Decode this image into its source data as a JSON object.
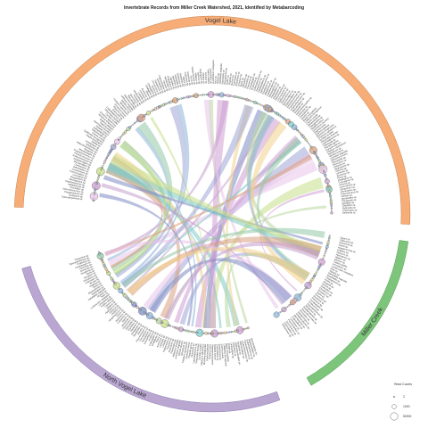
{
  "title": "Invertebrate Records from Miller Creek Watershed, 2021, Identified by Metabarcoding",
  "sectors": [
    {
      "name": "Vogel Lake",
      "color": "#f6ad77",
      "stroke": "#b8713a",
      "start": 272,
      "end": 453,
      "taxa_start": 276,
      "taxa_end": 450,
      "count": 170
    },
    {
      "name": "Miller Creek",
      "color": "#7cc57a",
      "stroke": "#3f8d3e",
      "start": 98,
      "end": 150,
      "taxa_start": 100,
      "taxa_end": 148,
      "count": 44
    },
    {
      "name": "North Vogel Lake",
      "color": "#b9a6d1",
      "stroke": "#7c6aa1",
      "start": 160,
      "end": 254,
      "taxa_start": 162,
      "taxa_end": 252,
      "count": 88
    }
  ],
  "taxa_visible": [
    "Tuberatanytarsus sp.",
    "Tanytarsus sp.",
    "Paratanytarsus sp.",
    "Stictochironomus sp.",
    "Procladius sp.",
    "Ablabesmyia sp.",
    "Cladotanytarsus sp.",
    "Micropsectra sp.",
    "Polypedilum sp.",
    "Cricotopus sp.",
    "Psectrocladius sp.",
    "Corynoneura sp.",
    "Orthocladius sp.",
    "Chironomus sp.",
    "Dicrotendipes sp.",
    "Glyptotendipes sp.",
    "Endochironomus sp.",
    "Parachironomus sp.",
    "Cryptochironomus sp.",
    "Microtendipes sp.",
    "Sergentia sp.",
    "Heterotrissocladius sp.",
    "Zalutschia sp.",
    "Limnophyes sp.",
    "Smittia sp.",
    "Baetis tricaudatus",
    "Callibaetis ferrugineus",
    "Caenis youngi",
    "Ephemerella sp.",
    "Leptophlebia sp.",
    "Hyalella azteca",
    "Gammarus lacustris",
    "Daphnia pulex",
    "Daphnia galeata",
    "Bosmina longirostris",
    "Chydorus sphaericus",
    "Cyclops scutifer",
    "Diacyclops thomasi",
    "Leptodiaptomus sp.",
    "Ostracoda sp.",
    "Physella gyrina",
    "Gyraulus parvus",
    "Pisidium casertanum",
    "Sphaerium sp.",
    "Valvata sincera",
    "Lymnaea stagnalis",
    "Helisoma trivolvis",
    "Planorbella sp.",
    "Musculium sp.",
    "Fossaria sp.",
    "Hydracarina sp.",
    "Lebertia sp.",
    "Limnesia sp.",
    "Arrenurus sp.",
    "Piona sp.",
    "Enallagma sp.",
    "Coenagrion sp.",
    "Aeshna sp.",
    "Leucorrhinia sp.",
    "Sympetrum sp.",
    "Limnephilus sp.",
    "Polycentropus sp.",
    "Oecetis sp.",
    "Mystacides sp.",
    "Phryganea sp.",
    "Agraylea sp.",
    "Oxyethira sp.",
    "Hydroptila sp.",
    "Triaenodes sp.",
    "Banksiola sp.",
    "Sigara sp.",
    "Callicorixa sp.",
    "Notonecta sp.",
    "Gerris sp.",
    "Hesperocorixa sp.",
    "Haliplus sp.",
    "Dytiscus sp.",
    "Hydroporus sp.",
    "Agabus sp.",
    "Gyrinus sp.",
    "Tubifex tubifex",
    "Limnodrilus sp.",
    "Lumbriculus variegatus",
    "Nais sp.",
    "Stylaria sp.",
    "Helobdella stagnalis",
    "Erpobdella sp.",
    "Glossiphonia sp.",
    "Hydra sp.",
    "Dugesia sp.",
    "Bezzia sp.",
    "Culicoides sp.",
    "Chaoborus sp.",
    "Simulium sp.",
    "Tipula sp.",
    "Hexatoma sp.",
    "Dicranota sp.",
    "Pericoma sp.",
    "Ceratopogon sp.",
    "Probezzia sp."
  ],
  "legend": {
    "title": "Read Counts",
    "items": [
      {
        "label": "2",
        "value": 2
      },
      {
        "label": "1000",
        "value": 1000
      },
      {
        "label": "50000",
        "value": 50000
      }
    ]
  },
  "colors": {
    "chords": [
      "#7fcbc7",
      "#8eb5d9",
      "#c7de8a",
      "#cf9fd3",
      "#9fa6d6",
      "#d8a07f",
      "#b9d7a1",
      "#e7c4ea",
      "#f2d18c",
      "#94c8a8",
      "#7f8dc4",
      "#c59fcd"
    ]
  }
}
